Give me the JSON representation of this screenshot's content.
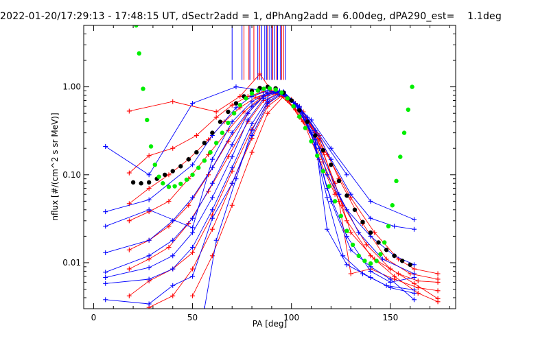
{
  "chart_data": {
    "type": "line",
    "title": "2022-01-20/17:29:13 - 17:48:15 UT, dSectr2add = 1, dPhAng2add = 6.00deg, dPA290_est=    1.1deg",
    "xlabel": "PA [deg]",
    "ylabel": "nflux [#/(cm^2 s sr MeV)]",
    "xlim": [
      -5,
      183
    ],
    "ylim": [
      0.003,
      5.0
    ],
    "yscale": "log",
    "x_tick_labels": [
      "0",
      "50",
      "100",
      "150"
    ],
    "x_tick_values": [
      0,
      50,
      100,
      150
    ],
    "y_tick_labels": [
      "0.01",
      "0.10",
      "1.00"
    ],
    "y_tick_values": [
      0.01,
      0.1,
      1.0
    ],
    "grid": false,
    "colors": {
      "red": "#ff0000",
      "blue": "#0000ff",
      "black": "#000000",
      "green": "#00ee00"
    },
    "vertical_marks": {
      "blue": [
        70,
        75,
        79,
        83,
        85,
        86.5,
        87.5,
        89,
        90,
        91.5,
        93,
        94.5,
        97
      ],
      "red": [
        76,
        78.5,
        81,
        84,
        88,
        90.5,
        92.5,
        95,
        96
      ],
      "y_top": 5.0,
      "y_bottom": 1.2
    },
    "series": [
      {
        "color": "red",
        "x": [
          18,
          40,
          62,
          74,
          84,
          90,
          96,
          104,
          116
        ],
        "y": [
          0.53,
          0.68,
          0.52,
          0.78,
          1.4,
          0.9,
          0.85,
          0.45,
          0.18
        ]
      },
      {
        "color": "red",
        "x": [
          18,
          28,
          40,
          52,
          62,
          70,
          78,
          86,
          94,
          102,
          108
        ],
        "y": [
          0.105,
          0.165,
          0.2,
          0.28,
          0.45,
          0.62,
          0.78,
          0.88,
          0.82,
          0.55,
          0.35
        ]
      },
      {
        "color": "red",
        "x": [
          18,
          28,
          38,
          48,
          58,
          66,
          74,
          82,
          90,
          98,
          106,
          114,
          122
        ],
        "y": [
          0.047,
          0.07,
          0.1,
          0.15,
          0.25,
          0.4,
          0.58,
          0.76,
          0.88,
          0.7,
          0.4,
          0.15,
          0.06
        ]
      },
      {
        "color": "red",
        "x": [
          18,
          28,
          38,
          48,
          58,
          68,
          76,
          84,
          92,
          100,
          108,
          118,
          130,
          142,
          154,
          162,
          174
        ],
        "y": [
          0.03,
          0.038,
          0.05,
          0.09,
          0.17,
          0.32,
          0.52,
          0.74,
          0.88,
          0.72,
          0.42,
          0.17,
          0.055,
          0.022,
          0.011,
          0.0085,
          0.0075
        ]
      },
      {
        "color": "red",
        "x": [
          18,
          28,
          38,
          48,
          58,
          68,
          78,
          86,
          94,
          104,
          114,
          124,
          136,
          148,
          160,
          174
        ],
        "y": [
          0.014,
          0.018,
          0.026,
          0.045,
          0.1,
          0.24,
          0.5,
          0.78,
          0.85,
          0.6,
          0.28,
          0.09,
          0.028,
          0.011,
          0.0075,
          0.0065
        ]
      },
      {
        "color": "red",
        "x": [
          18,
          28,
          38,
          48,
          58,
          68,
          78,
          86,
          94,
          102,
          112,
          122,
          130,
          142,
          154,
          164,
          174
        ],
        "y": [
          0.0085,
          0.011,
          0.015,
          0.028,
          0.065,
          0.16,
          0.4,
          0.7,
          0.86,
          0.65,
          0.3,
          0.08,
          0.022,
          0.011,
          0.0075,
          0.0062,
          0.006
        ]
      },
      {
        "color": "red",
        "x": [
          18,
          28,
          40,
          50,
          60,
          70,
          80,
          88,
          96,
          104,
          114,
          124,
          130,
          140,
          152,
          164,
          174
        ],
        "y": [
          0.0042,
          0.0062,
          0.0085,
          0.013,
          0.035,
          0.11,
          0.33,
          0.66,
          0.84,
          0.6,
          0.26,
          0.05,
          0.0075,
          0.0085,
          0.0065,
          0.0052,
          0.0048
        ]
      },
      {
        "color": "red",
        "x": [
          28,
          40,
          50,
          60,
          70,
          80,
          88,
          96,
          106,
          116,
          126,
          138,
          150,
          162,
          174
        ],
        "y": [
          0.0031,
          0.0042,
          0.0085,
          0.024,
          0.08,
          0.26,
          0.6,
          0.82,
          0.52,
          0.18,
          0.045,
          0.016,
          0.0085,
          0.0058,
          0.0039
        ]
      },
      {
        "color": "red",
        "x": [
          50,
          60,
          70,
          80,
          88,
          96,
          106,
          116,
          128,
          140,
          152,
          164,
          174
        ],
        "y": [
          0.0042,
          0.012,
          0.045,
          0.18,
          0.5,
          0.78,
          0.45,
          0.14,
          0.03,
          0.012,
          0.007,
          0.0045,
          0.0036
        ]
      },
      {
        "color": "blue",
        "x": [
          6,
          28,
          50,
          72,
          84,
          92,
          100,
          108,
          128
        ],
        "y": [
          0.21,
          0.1,
          0.65,
          1.0,
          0.92,
          0.88,
          0.7,
          0.45,
          0.1
        ]
      },
      {
        "color": "blue",
        "x": [
          6,
          28,
          50,
          60,
          72,
          80,
          88,
          94,
          100,
          110,
          120,
          140,
          162
        ],
        "y": [
          0.038,
          0.052,
          0.13,
          0.28,
          0.58,
          0.78,
          0.9,
          0.85,
          0.7,
          0.42,
          0.2,
          0.05,
          0.031
        ]
      },
      {
        "color": "blue",
        "x": [
          6,
          28,
          50,
          60,
          70,
          80,
          88,
          96,
          104,
          112,
          120,
          130,
          140,
          152,
          162
        ],
        "y": [
          0.026,
          0.04,
          0.025,
          0.15,
          0.4,
          0.68,
          0.86,
          0.86,
          0.6,
          0.32,
          0.15,
          0.06,
          0.032,
          0.026,
          0.024
        ]
      },
      {
        "color": "blue",
        "x": [
          6,
          28,
          40,
          50,
          60,
          70,
          80,
          88,
          96,
          104,
          112,
          118,
          128,
          140,
          152,
          162
        ],
        "y": [
          0.013,
          0.018,
          0.03,
          0.055,
          0.12,
          0.3,
          0.6,
          0.84,
          0.85,
          0.58,
          0.28,
          0.1,
          0.04,
          0.02,
          0.012,
          0.0095
        ]
      },
      {
        "color": "blue",
        "x": [
          6,
          28,
          40,
          50,
          60,
          70,
          78,
          86,
          94,
          102,
          110,
          118,
          128,
          140,
          150,
          162
        ],
        "y": [
          0.0078,
          0.012,
          0.018,
          0.032,
          0.08,
          0.22,
          0.5,
          0.8,
          0.88,
          0.62,
          0.3,
          0.07,
          0.02,
          0.008,
          0.006,
          0.0068
        ]
      },
      {
        "color": "blue",
        "x": [
          6,
          28,
          40,
          50,
          60,
          70,
          78,
          86,
          94,
          102,
          110,
          118,
          126,
          136,
          148,
          162
        ],
        "y": [
          0.0068,
          0.0088,
          0.012,
          0.022,
          0.055,
          0.16,
          0.42,
          0.74,
          0.9,
          0.64,
          0.3,
          0.055,
          0.012,
          0.0075,
          0.0055,
          0.0049
        ]
      },
      {
        "color": "blue",
        "x": [
          6,
          28,
          40,
          50,
          60,
          70,
          80,
          88,
          96,
          104,
          112,
          118,
          128,
          140,
          150,
          162
        ],
        "y": [
          0.0058,
          0.0065,
          0.0085,
          0.015,
          0.04,
          0.12,
          0.38,
          0.72,
          0.88,
          0.6,
          0.25,
          0.024,
          0.0095,
          0.0068,
          0.0052,
          0.0045
        ]
      },
      {
        "color": "blue",
        "x": [
          6,
          28,
          40,
          50,
          60,
          70,
          80,
          88,
          96,
          104,
          112,
          120,
          130,
          140,
          150,
          162
        ],
        "y": [
          0.0038,
          0.0034,
          0.0055,
          0.007,
          0.032,
          0.08,
          0.28,
          0.64,
          0.86,
          0.58,
          0.22,
          0.05,
          0.014,
          0.009,
          0.0065,
          0.0038
        ]
      },
      {
        "color": "blue",
        "x": [
          56,
          62,
          72,
          80,
          88,
          96,
          104,
          114,
          124,
          134,
          146,
          162
        ],
        "y": [
          0.003,
          0.018,
          0.09,
          0.32,
          0.68,
          0.87,
          0.56,
          0.2,
          0.06,
          0.022,
          0.011,
          0.0075
        ]
      },
      {
        "color": "black",
        "style": "thick-dots",
        "x": [
          20,
          24,
          28,
          32,
          36,
          40,
          44,
          48,
          52,
          56,
          60,
          64,
          68,
          72,
          76,
          80,
          84,
          88,
          92,
          96,
          100,
          104,
          108,
          112,
          116,
          120,
          124,
          128,
          132,
          136,
          140,
          144,
          148,
          152,
          156,
          160
        ],
        "y": [
          0.082,
          0.08,
          0.082,
          0.09,
          0.1,
          0.11,
          0.125,
          0.15,
          0.18,
          0.23,
          0.3,
          0.4,
          0.52,
          0.65,
          0.78,
          0.9,
          0.97,
          1.0,
          0.96,
          0.86,
          0.7,
          0.54,
          0.4,
          0.28,
          0.19,
          0.13,
          0.085,
          0.058,
          0.04,
          0.029,
          0.022,
          0.017,
          0.014,
          0.012,
          0.0105,
          0.0095
        ]
      },
      {
        "color": "green",
        "style": "thick-dots",
        "x": [
          21.5,
          23,
          25,
          27,
          29,
          31,
          33,
          35,
          38,
          41,
          44,
          47,
          50,
          53,
          56,
          59,
          62,
          65,
          68,
          71,
          74,
          77,
          80,
          83,
          86,
          89,
          92,
          95,
          98,
          101,
          104,
          107,
          110,
          113,
          116,
          119,
          122,
          125,
          128,
          131,
          134,
          137,
          140,
          143,
          145,
          147,
          149,
          151,
          153,
          155,
          157,
          159,
          161
        ],
        "y": [
          5.0,
          2.4,
          0.95,
          0.42,
          0.21,
          0.13,
          0.095,
          0.08,
          0.073,
          0.074,
          0.079,
          0.088,
          0.1,
          0.12,
          0.145,
          0.18,
          0.23,
          0.3,
          0.39,
          0.5,
          0.62,
          0.74,
          0.84,
          0.91,
          0.95,
          0.96,
          0.93,
          0.86,
          0.74,
          0.6,
          0.46,
          0.34,
          0.24,
          0.165,
          0.11,
          0.074,
          0.05,
          0.034,
          0.023,
          0.016,
          0.012,
          0.0105,
          0.0098,
          0.0105,
          0.0125,
          0.017,
          0.026,
          0.045,
          0.085,
          0.16,
          0.3,
          0.55,
          1.0
        ]
      }
    ]
  }
}
